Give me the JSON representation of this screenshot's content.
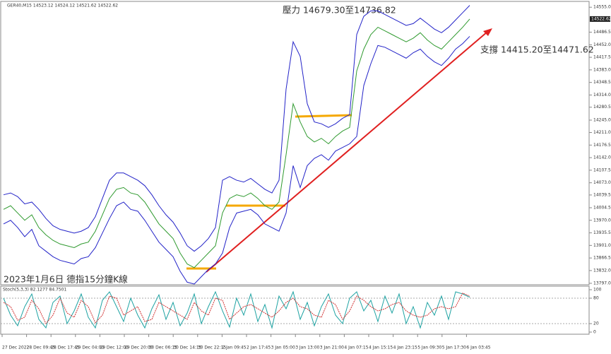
{
  "chart_data": [
    {
      "type": "line",
      "title": "GER40,M15  14523.12 14524.12 14521.62 14522.62",
      "annotations": [
        "壓力 14679.30至14736.82",
        "支撐 14415.20至14471.62",
        "2023年1月6日 德指15分鐘K線"
      ],
      "last": 14522.62,
      "ylim": [
        13793,
        14569
      ],
      "yticks": [
        {
          "value": 14555,
          "label": "14555.00"
        },
        {
          "value": 14486.5,
          "label": "14486.50"
        },
        {
          "value": 14452,
          "label": "14452.00"
        },
        {
          "value": 14417.5,
          "label": "14417.50"
        },
        {
          "value": 14383,
          "label": "14383.00"
        },
        {
          "value": 14348.5,
          "label": "14348.50"
        },
        {
          "value": 14314,
          "label": "14314.00"
        },
        {
          "value": 14280.5,
          "label": "14280.50"
        },
        {
          "value": 14245,
          "label": "14245.00"
        },
        {
          "value": 14211,
          "label": "14211.00"
        },
        {
          "value": 14176.5,
          "label": "14176.50"
        },
        {
          "value": 14142,
          "label": "14142.00"
        },
        {
          "value": 14107.5,
          "label": "14107.50"
        },
        {
          "value": 14073,
          "label": "14073.00"
        },
        {
          "value": 14039.5,
          "label": "14039.50"
        },
        {
          "value": 14004.5,
          "label": "14004.50"
        },
        {
          "value": 13970,
          "label": "13970.00"
        },
        {
          "value": 13935.5,
          "label": "13935.50"
        },
        {
          "value": 13901,
          "label": "13901.00"
        },
        {
          "value": 13866.5,
          "label": "13866.50"
        },
        {
          "value": 13832,
          "label": "13832.00"
        },
        {
          "value": 13797,
          "label": "13797.00"
        }
      ],
      "series": [
        {
          "color": "#2f9a2f",
          "values": [
            14000,
            14010,
            13990,
            13970,
            13985,
            13950,
            13930,
            13915,
            13905,
            13900,
            13895,
            13905,
            13910,
            13940,
            13985,
            14030,
            14055,
            14060,
            14045,
            14040,
            14020,
            13990,
            13960,
            13940,
            13920,
            13880,
            13850,
            13840,
            13860,
            13880,
            13900,
            13990,
            14030,
            14040,
            14035,
            14045,
            14030,
            14010,
            14000,
            14020,
            14150,
            14290,
            14240,
            14200,
            14185,
            14195,
            14180,
            14200,
            14215,
            14225,
            14380,
            14440,
            14480,
            14500,
            14490,
            14480,
            14470,
            14460,
            14470,
            14485,
            14465,
            14450,
            14440,
            14460,
            14480,
            14500,
            14522.62
          ]
        },
        {
          "color": "#2323c8",
          "values": [
            14040,
            14045,
            14035,
            14015,
            14020,
            14000,
            13975,
            13955,
            13945,
            13940,
            13935,
            13940,
            13950,
            13980,
            14030,
            14080,
            14100,
            14100,
            14090,
            14080,
            14065,
            14040,
            14010,
            13985,
            13965,
            13935,
            13900,
            13885,
            13900,
            13920,
            13950,
            14080,
            14090,
            14080,
            14075,
            14085,
            14070,
            14055,
            14045,
            14080,
            14330,
            14460,
            14420,
            14290,
            14240,
            14235,
            14225,
            14235,
            14250,
            14260,
            14480,
            14530,
            14545,
            14545,
            14535,
            14525,
            14515,
            14505,
            14510,
            14525,
            14510,
            14495,
            14485,
            14500,
            14520,
            14540,
            14560
          ]
        },
        {
          "color": "#2323c8",
          "values": [
            13960,
            13970,
            13950,
            13925,
            13945,
            13900,
            13885,
            13870,
            13860,
            13855,
            13850,
            13865,
            13870,
            13895,
            13935,
            13975,
            14010,
            14020,
            14000,
            13995,
            13970,
            13940,
            13910,
            13890,
            13870,
            13830,
            13800,
            13795,
            13815,
            13835,
            13850,
            13880,
            13950,
            13990,
            13995,
            14000,
            13985,
            13960,
            13950,
            13940,
            13990,
            14120,
            14060,
            14120,
            14140,
            14150,
            14135,
            14160,
            14170,
            14180,
            14200,
            14340,
            14400,
            14450,
            14445,
            14435,
            14425,
            14415,
            14430,
            14440,
            14420,
            14405,
            14395,
            14415,
            14440,
            14455,
            14475
          ]
        }
      ]
    },
    {
      "type": "line",
      "title": "Stoch(5,3,3) 82.1277 84.7501",
      "ylim": [
        0,
        100
      ],
      "yticks": [
        100,
        80,
        20,
        0
      ],
      "time_labels": [
        "27 Dec 2022",
        "28 Dec 09:45",
        "28 Dec 17:45",
        "29 Dec 04:00",
        "29 Dec 12:00",
        "29 Dec 20:00",
        "30 Dec 06:15",
        "30 Dec 14:15",
        "30 Dec 22:15",
        "2 Jan 09:45",
        "2 Jan 17:45",
        "3 Jan 05:00",
        "3 Jan 13:00",
        "3 Jan 21:00",
        "4 Jan 07:15",
        "4 Jan 15:15",
        "4 Jan 23:15",
        "5 Jan 09:30",
        "5 Jan 17:30",
        "6 Jan 03:45"
      ],
      "series": [
        {
          "color": "#1fa3a3",
          "values": [
            80,
            40,
            15,
            60,
            90,
            30,
            10,
            70,
            85,
            20,
            50,
            90,
            35,
            10,
            75,
            95,
            60,
            25,
            80,
            40,
            10,
            55,
            88,
            30,
            70,
            15,
            45,
            90,
            20,
            60,
            95,
            50,
            12,
            80,
            40,
            90,
            25,
            65,
            10,
            85,
            55,
            95,
            30,
            70,
            15,
            60,
            90,
            40,
            20,
            80,
            95,
            50,
            75,
            25,
            85,
            45,
            90,
            20,
            60,
            10,
            70,
            40,
            85,
            30,
            95,
            90,
            82.1277
          ]
        },
        {
          "color": "#d03030",
          "values": [
            70,
            60,
            28,
            35,
            75,
            55,
            20,
            40,
            80,
            45,
            35,
            75,
            60,
            22,
            40,
            85,
            80,
            40,
            50,
            60,
            25,
            30,
            70,
            60,
            50,
            40,
            30,
            70,
            50,
            40,
            80,
            75,
            30,
            45,
            60,
            65,
            55,
            45,
            35,
            50,
            70,
            80,
            60,
            55,
            40,
            35,
            75,
            65,
            30,
            50,
            85,
            75,
            60,
            50,
            55,
            65,
            70,
            50,
            40,
            35,
            40,
            55,
            60,
            55,
            60,
            92,
            84.7501
          ]
        }
      ]
    }
  ]
}
